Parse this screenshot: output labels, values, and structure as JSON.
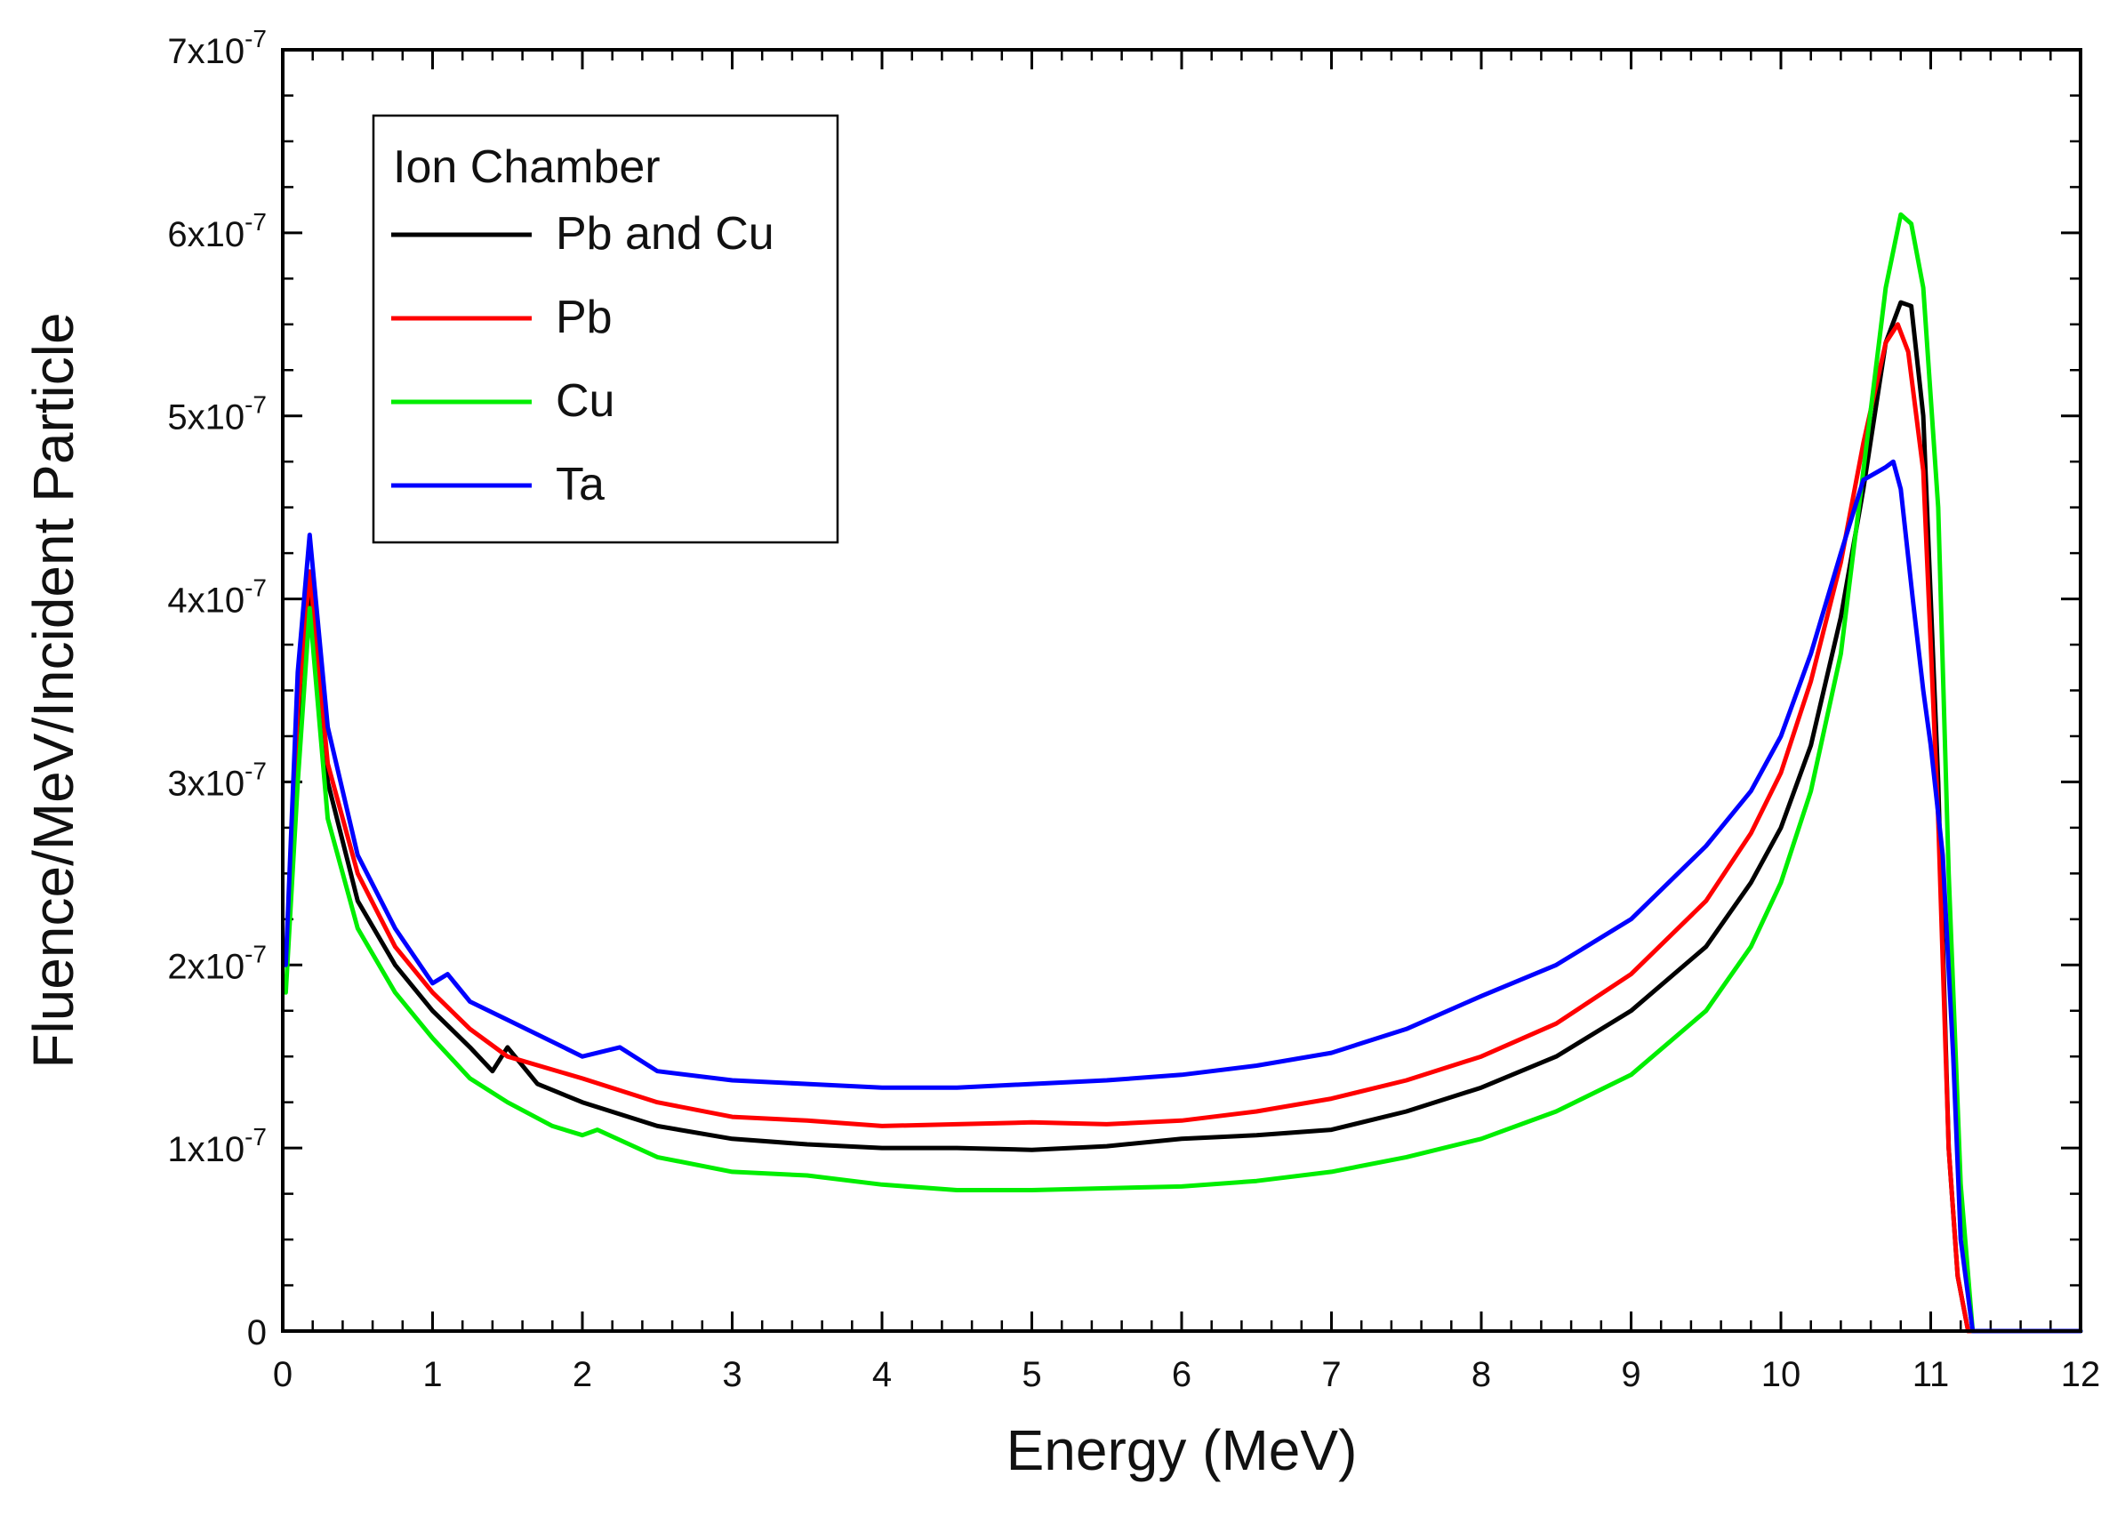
{
  "chart_data": {
    "type": "line",
    "title": "",
    "xlabel": "Energy (MeV)",
    "ylabel": "Fluence/MeV/Incident Particle",
    "xlim": [
      0,
      12
    ],
    "ylim": [
      0,
      7e-07
    ],
    "x_ticks": [
      0,
      1,
      2,
      3,
      4,
      5,
      6,
      7,
      8,
      9,
      10,
      11,
      12
    ],
    "x_tick_labels": [
      "0",
      "1",
      "2",
      "3",
      "4",
      "5",
      "6",
      "7",
      "8",
      "9",
      "10",
      "11",
      "12"
    ],
    "y_ticks": [
      0,
      1e-07,
      2e-07,
      3e-07,
      4e-07,
      5e-07,
      6e-07,
      7e-07
    ],
    "y_tick_labels": [
      {
        "mantissa": "0",
        "exponent": ""
      },
      {
        "mantissa": "1x10",
        "exponent": "-7"
      },
      {
        "mantissa": "2x10",
        "exponent": "-7"
      },
      {
        "mantissa": "3x10",
        "exponent": "-7"
      },
      {
        "mantissa": "4x10",
        "exponent": "-7"
      },
      {
        "mantissa": "5x10",
        "exponent": "-7"
      },
      {
        "mantissa": "6x10",
        "exponent": "-7"
      },
      {
        "mantissa": "7x10",
        "exponent": "-7"
      }
    ],
    "legend": {
      "title": "Ion Chamber",
      "position": "top-left"
    },
    "series": [
      {
        "name": "Pb and Cu",
        "color": "#000000",
        "x": [
          0.02,
          0.1,
          0.18,
          0.3,
          0.5,
          0.75,
          1.0,
          1.25,
          1.4,
          1.5,
          1.7,
          2.0,
          2.5,
          3.0,
          3.5,
          4.0,
          4.5,
          5.0,
          5.5,
          6.0,
          6.5,
          7.0,
          7.5,
          8.0,
          8.5,
          9.0,
          9.5,
          9.8,
          10.0,
          10.2,
          10.4,
          10.55,
          10.7,
          10.8,
          10.87,
          10.95,
          11.05,
          11.12,
          11.18,
          11.25,
          11.4,
          12.0
        ],
        "y": [
          2e-07,
          3.3e-07,
          4.1e-07,
          3e-07,
          2.35e-07,
          2e-07,
          1.75e-07,
          1.55e-07,
          1.42e-07,
          1.55e-07,
          1.35e-07,
          1.25e-07,
          1.12e-07,
          1.05e-07,
          1.02e-07,
          1e-07,
          1e-07,
          9.9e-08,
          1.01e-07,
          1.05e-07,
          1.07e-07,
          1.1e-07,
          1.2e-07,
          1.33e-07,
          1.5e-07,
          1.75e-07,
          2.1e-07,
          2.45e-07,
          2.75e-07,
          3.2e-07,
          3.9e-07,
          4.6e-07,
          5.4e-07,
          5.62e-07,
          5.6e-07,
          5e-07,
          3e-07,
          1e-07,
          3e-08,
          0.0,
          0.0,
          0.0
        ]
      },
      {
        "name": "Pb",
        "color": "#ff0000",
        "x": [
          0.02,
          0.1,
          0.18,
          0.3,
          0.5,
          0.75,
          1.0,
          1.25,
          1.5,
          2.0,
          2.5,
          3.0,
          3.5,
          4.0,
          4.5,
          5.0,
          5.5,
          6.0,
          6.5,
          7.0,
          7.5,
          8.0,
          8.5,
          9.0,
          9.5,
          9.8,
          10.0,
          10.2,
          10.4,
          10.55,
          10.7,
          10.78,
          10.85,
          10.95,
          11.05,
          11.12,
          11.18,
          11.25,
          11.4,
          12.0
        ],
        "y": [
          2e-07,
          3.4e-07,
          4.15e-07,
          3.1e-07,
          2.5e-07,
          2.1e-07,
          1.85e-07,
          1.65e-07,
          1.5e-07,
          1.38e-07,
          1.25e-07,
          1.17e-07,
          1.15e-07,
          1.12e-07,
          1.13e-07,
          1.14e-07,
          1.13e-07,
          1.15e-07,
          1.2e-07,
          1.27e-07,
          1.37e-07,
          1.5e-07,
          1.68e-07,
          1.95e-07,
          2.35e-07,
          2.72e-07,
          3.05e-07,
          3.55e-07,
          4.2e-07,
          4.85e-07,
          5.4e-07,
          5.5e-07,
          5.35e-07,
          4.7e-07,
          2.8e-07,
          1e-07,
          3e-08,
          0.0,
          0.0,
          0.0
        ]
      },
      {
        "name": "Cu",
        "color": "#00ee00",
        "x": [
          0.02,
          0.1,
          0.18,
          0.3,
          0.5,
          0.75,
          1.0,
          1.25,
          1.5,
          1.8,
          2.0,
          2.1,
          2.5,
          3.0,
          3.5,
          4.0,
          4.5,
          5.0,
          5.5,
          6.0,
          6.5,
          7.0,
          7.5,
          8.0,
          8.5,
          9.0,
          9.5,
          9.8,
          10.0,
          10.2,
          10.4,
          10.55,
          10.7,
          10.8,
          10.87,
          10.95,
          11.05,
          11.12,
          11.2,
          11.28,
          11.4,
          12.0
        ],
        "y": [
          1.85e-07,
          3e-07,
          3.95e-07,
          2.8e-07,
          2.2e-07,
          1.85e-07,
          1.6e-07,
          1.38e-07,
          1.25e-07,
          1.12e-07,
          1.07e-07,
          1.1e-07,
          9.5e-08,
          8.7e-08,
          8.5e-08,
          8e-08,
          7.7e-08,
          7.7e-08,
          7.8e-08,
          7.9e-08,
          8.2e-08,
          8.7e-08,
          9.5e-08,
          1.05e-07,
          1.2e-07,
          1.4e-07,
          1.75e-07,
          2.1e-07,
          2.45e-07,
          2.95e-07,
          3.7e-07,
          4.7e-07,
          5.7e-07,
          6.1e-07,
          6.05e-07,
          5.7e-07,
          4.5e-07,
          2.5e-07,
          8e-08,
          0.0,
          0.0,
          0.0
        ]
      },
      {
        "name": "Ta",
        "color": "#0000ff",
        "x": [
          0.02,
          0.1,
          0.18,
          0.3,
          0.5,
          0.75,
          1.0,
          1.1,
          1.25,
          1.5,
          2.0,
          2.25,
          2.5,
          3.0,
          3.5,
          4.0,
          4.5,
          5.0,
          5.5,
          6.0,
          6.5,
          7.0,
          7.5,
          8.0,
          8.5,
          9.0,
          9.5,
          9.8,
          10.0,
          10.2,
          10.4,
          10.55,
          10.7,
          10.75,
          10.8,
          10.88,
          10.95,
          11.0,
          11.08,
          11.15,
          11.2,
          11.28,
          11.4,
          12.0
        ],
        "y": [
          2e-07,
          3.6e-07,
          4.35e-07,
          3.3e-07,
          2.6e-07,
          2.2e-07,
          1.9e-07,
          1.95e-07,
          1.8e-07,
          1.7e-07,
          1.5e-07,
          1.55e-07,
          1.42e-07,
          1.37e-07,
          1.35e-07,
          1.33e-07,
          1.33e-07,
          1.35e-07,
          1.37e-07,
          1.4e-07,
          1.45e-07,
          1.52e-07,
          1.65e-07,
          1.83e-07,
          2e-07,
          2.25e-07,
          2.65e-07,
          2.95e-07,
          3.25e-07,
          3.7e-07,
          4.25e-07,
          4.65e-07,
          4.72e-07,
          4.75e-07,
          4.6e-07,
          4e-07,
          3.5e-07,
          3.2e-07,
          2.6e-07,
          1.5e-07,
          5e-08,
          0.0,
          0.0,
          0.0
        ]
      }
    ]
  }
}
